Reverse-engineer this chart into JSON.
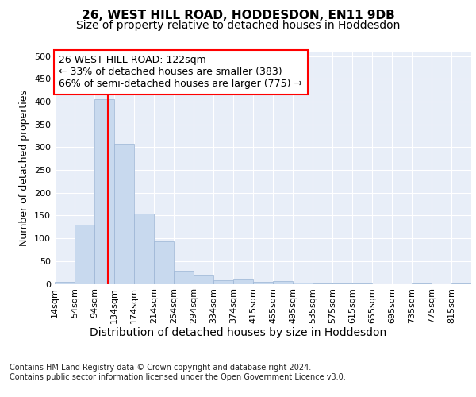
{
  "title1": "26, WEST HILL ROAD, HODDESDON, EN11 9DB",
  "title2": "Size of property relative to detached houses in Hoddesdon",
  "xlabel": "Distribution of detached houses by size in Hoddesdon",
  "ylabel": "Number of detached properties",
  "footnote1": "Contains HM Land Registry data © Crown copyright and database right 2024.",
  "footnote2": "Contains public sector information licensed under the Open Government Licence v3.0.",
  "bar_color": "#c8d9ee",
  "bar_edge_color": "#9ab4d4",
  "bg_color": "#e8eef8",
  "red_line_x": 122,
  "annotation_line1": "26 WEST HILL ROAD: 122sqm",
  "annotation_line2": "← 33% of detached houses are smaller (383)",
  "annotation_line3": "66% of semi-detached houses are larger (775) →",
  "categories": [
    "14sqm",
    "54sqm",
    "94sqm",
    "134sqm",
    "174sqm",
    "214sqm",
    "254sqm",
    "294sqm",
    "334sqm",
    "374sqm",
    "415sqm",
    "455sqm",
    "495sqm",
    "535sqm",
    "575sqm",
    "615sqm",
    "655sqm",
    "695sqm",
    "735sqm",
    "775sqm",
    "815sqm"
  ],
  "bin_starts": [
    14,
    54,
    94,
    134,
    174,
    214,
    254,
    294,
    334,
    374,
    415,
    455,
    495,
    535,
    575,
    615,
    655,
    695,
    735,
    775,
    815
  ],
  "bin_width": 40,
  "values": [
    5,
    130,
    405,
    308,
    155,
    93,
    28,
    20,
    8,
    10,
    5,
    6,
    2,
    1,
    1,
    1,
    0,
    0,
    1,
    0,
    1
  ],
  "ylim": [
    0,
    510
  ],
  "yticks": [
    0,
    50,
    100,
    150,
    200,
    250,
    300,
    350,
    400,
    450,
    500
  ],
  "grid_color": "#ffffff",
  "title1_fontsize": 11,
  "title2_fontsize": 10,
  "annotation_fontsize": 9,
  "ylabel_fontsize": 9,
  "xlabel_fontsize": 10,
  "tick_fontsize": 8,
  "footnote_fontsize": 7
}
